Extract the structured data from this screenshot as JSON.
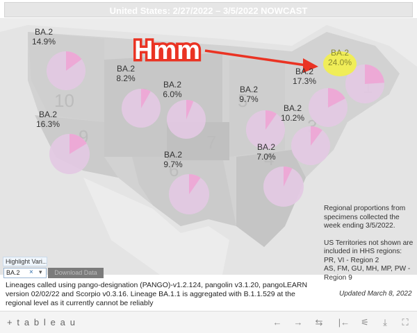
{
  "title": "United States: 2/27/2022 – 3/5/2022 NOWCAST",
  "annotation": {
    "text": "Hmm",
    "color": "#ea3323",
    "highlight_color": "#f3f04a"
  },
  "colors": {
    "pie_base": "#e3c9e3",
    "pie_ba2": "#eda9d6",
    "map_bg": "#d9d9d9",
    "map_land": "#c8c8c8"
  },
  "regions": [
    {
      "id": "region-10",
      "number": "10",
      "lineage": "BA.2",
      "share_label": "14.9%",
      "share": 0.149
    },
    {
      "id": "region-9",
      "number": "9",
      "lineage": "BA.2",
      "share_label": "16.3%",
      "share": 0.163
    },
    {
      "id": "region-8",
      "number": "8",
      "lineage": "BA.2",
      "share_label": "8.2%",
      "share": 0.082
    },
    {
      "id": "region-7",
      "number": "7",
      "lineage": "BA.2",
      "share_label": "6.0%",
      "share": 0.06
    },
    {
      "id": "region-6",
      "number": "6",
      "lineage": "BA.2",
      "share_label": "9.7%",
      "share": 0.097
    },
    {
      "id": "region-5",
      "number": "5",
      "lineage": "BA.2",
      "share_label": "9.7%",
      "share": 0.097
    },
    {
      "id": "region-4",
      "number": "4",
      "lineage": "BA.2",
      "share_label": "7.0%",
      "share": 0.07
    },
    {
      "id": "region-3",
      "number": "3",
      "lineage": "BA.2",
      "share_label": "10.2%",
      "share": 0.102
    },
    {
      "id": "region-2",
      "number": "2",
      "lineage": "BA.2",
      "share_label": "17.3%",
      "share": 0.173
    },
    {
      "id": "region-1",
      "number": "1",
      "lineage": "BA.2",
      "share_label": "24.0%",
      "share": 0.24
    }
  ],
  "note": {
    "p1": "Regional proportions from specimens collected the week ending 3/5/2022.",
    "p2": "US Territories not shown are included in HHS regions:",
    "p3": "PR, VI - Region 2",
    "p4": "AS, FM, GU, MH, MP, PW - Region 9"
  },
  "highlight_variant": {
    "label": "Highlight Vari...",
    "value": "BA.2",
    "clear": "×",
    "dropdown": "▾"
  },
  "download_button": "Download Data",
  "lineage_text": "Lineages called using pango-designation (PANGO)-v1.2.124, pangolin v3.1.20, pangoLEARN version 02/02/22 and Scorpio v0.3.16. Lineage BA.1.1 is aggregated with B.1.1.529 at the regional level as it currently cannot be reliably",
  "updated": "Updated March 8, 2022",
  "toolbar": {
    "logo": "+ t a b l e a u",
    "undo": "←",
    "redo": "→",
    "revert": "⇆",
    "reset": "|←",
    "share": "⚟",
    "download": "⤓",
    "fullscreen": "⛶"
  }
}
